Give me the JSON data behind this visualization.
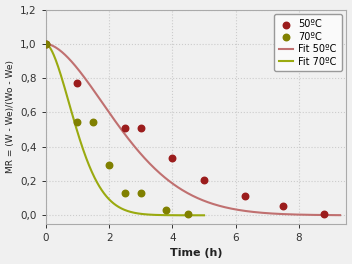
{
  "title": "",
  "xlabel": "Time (h)",
  "ylabel": "MR = (W - We)/(Wo - We)",
  "xlim": [
    0,
    9.5
  ],
  "ylim": [
    -0.05,
    1.2
  ],
  "yticks": [
    0.0,
    0.2,
    0.4,
    0.6,
    0.8,
    1.0,
    1.2
  ],
  "xticks": [
    0,
    2,
    4,
    6,
    8
  ],
  "color_50": "#9B1C1C",
  "color_70": "#808000",
  "fit_color_50": "#C07070",
  "fit_color_70": "#9aaa10",
  "scatter_50_x": [
    0,
    1,
    2.5,
    3.0,
    4.0,
    5.0,
    6.3,
    7.5,
    8.8
  ],
  "scatter_50_y": [
    1.0,
    0.77,
    0.51,
    0.51,
    0.335,
    0.205,
    0.11,
    0.055,
    0.01
  ],
  "scatter_70_x": [
    0,
    1.0,
    1.5,
    2.0,
    2.5,
    3.0,
    3.8,
    4.5
  ],
  "scatter_70_y": [
    1.0,
    0.545,
    0.545,
    0.295,
    0.13,
    0.13,
    0.03,
    0.005
  ],
  "de_page_50_k": 0.155,
  "de_page_50_n": 1.72,
  "de_page_70_k": 0.72,
  "de_page_70_n": 1.72,
  "legend_labels": [
    "50ºC",
    "70ºC",
    "Fit 50ºC",
    "Fit 70ºC"
  ],
  "background_color": "#f0f0f0",
  "grid_color": "#cccccc"
}
